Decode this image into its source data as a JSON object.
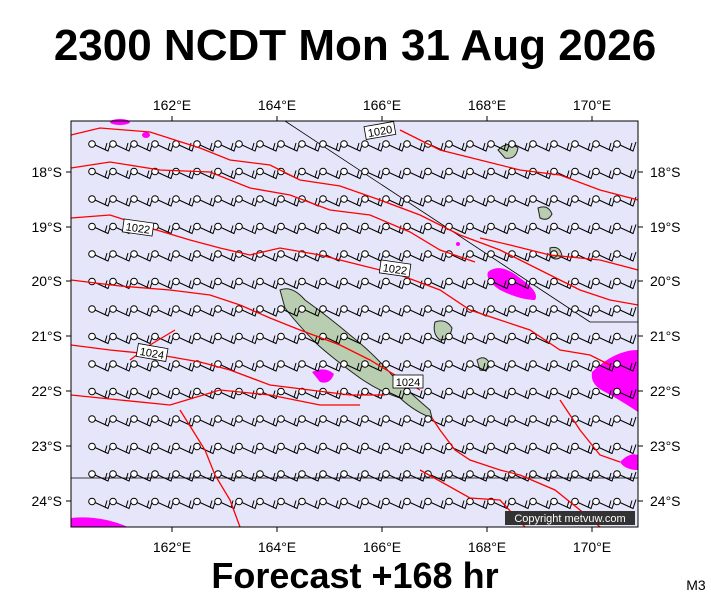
{
  "header": {
    "title": "2300 NCDT Mon 31 Aug 2026"
  },
  "map": {
    "longitude_labels": [
      "162°E",
      "164°E",
      "166°E",
      "168°E",
      "170°E"
    ],
    "latitude_labels": [
      "18°S",
      "19°S",
      "20°S",
      "21°S",
      "22°S",
      "23°S",
      "24°S"
    ],
    "isobar_labels": [
      "1020",
      "1022",
      "1022",
      "1024",
      "1024"
    ],
    "copyright": "Copyright metvuw.com"
  },
  "footer": {
    "forecast": "Forecast +168 hr",
    "code": "M3"
  }
}
